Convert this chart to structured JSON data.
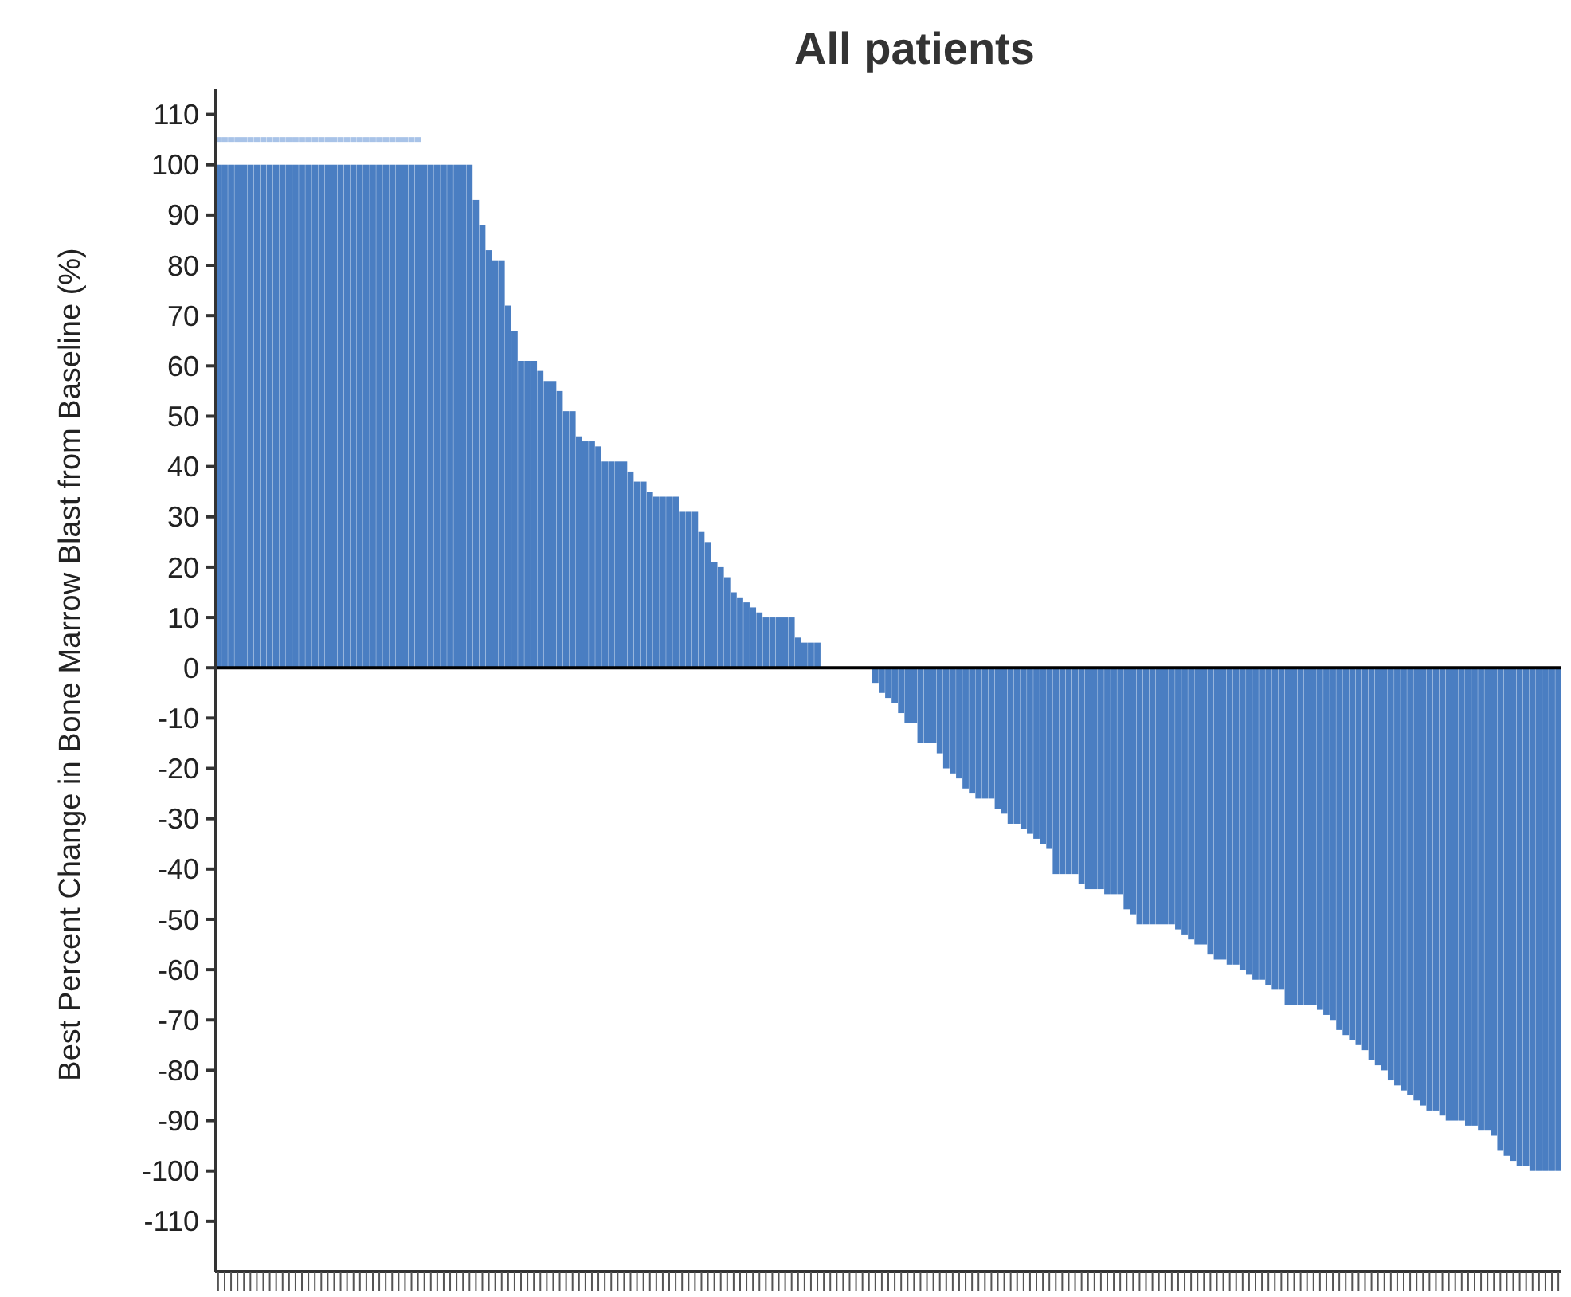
{
  "chart_data": {
    "type": "bar",
    "title": "All patients",
    "ylabel": "Best Percent Change in Bone Marrow Blast from Baseline (%)",
    "categories": [
      null,
      null,
      null,
      null,
      null,
      null,
      null,
      null,
      null,
      null,
      null,
      null,
      null,
      null,
      null,
      null,
      null,
      null,
      null,
      null,
      null,
      null,
      null,
      null,
      null,
      null,
      null,
      null,
      null,
      null,
      null,
      null,
      null,
      null,
      null,
      null,
      null,
      null,
      null,
      null,
      null,
      null,
      null,
      null,
      null,
      null,
      null,
      null,
      null,
      null,
      null,
      null,
      null,
      null,
      null,
      null,
      null,
      null,
      null,
      null,
      null,
      null,
      null,
      null,
      null,
      null,
      null,
      null,
      null,
      null,
      null,
      null,
      null,
      null,
      null,
      null,
      null,
      null,
      null,
      null,
      null,
      null,
      null,
      null,
      null,
      null,
      null,
      null,
      null,
      null,
      null,
      null,
      null,
      null,
      null,
      null,
      null,
      null,
      null,
      null,
      null,
      null,
      null,
      null,
      null,
      null,
      null,
      null,
      null,
      null,
      null,
      null,
      null,
      null,
      null,
      null,
      null,
      null,
      null,
      null,
      null,
      null,
      null,
      null,
      null,
      null,
      null,
      null,
      null,
      null,
      null,
      null,
      null,
      null,
      null,
      null,
      null,
      null,
      null,
      null,
      null,
      null,
      null,
      null,
      null,
      null,
      null,
      null,
      null,
      null,
      null,
      null,
      null,
      null,
      null,
      null,
      null,
      null,
      null,
      null,
      null,
      null,
      null,
      null,
      null,
      null,
      null,
      null,
      null,
      null,
      null,
      null,
      null,
      null,
      null,
      null,
      null,
      null,
      null,
      null,
      null,
      null,
      null,
      null,
      null,
      null,
      null,
      null,
      null,
      null,
      null,
      null,
      null,
      null,
      null,
      null,
      null,
      null,
      null,
      null,
      null,
      null,
      null,
      null,
      null,
      null,
      null,
      null,
      null
    ],
    "series": [
      {
        "color": "#4a7ec2",
        "values": [
          100,
          100,
          100,
          100,
          100,
          100,
          100,
          100,
          100,
          100,
          100,
          100,
          100,
          100,
          100,
          100,
          100,
          100,
          100,
          100,
          100,
          100,
          100,
          100,
          100,
          100,
          100,
          100,
          100,
          100,
          100,
          100,
          100,
          100,
          100,
          100,
          100,
          100,
          100,
          100,
          93,
          88,
          83,
          81,
          81,
          72,
          67,
          61,
          61,
          61,
          59,
          57,
          57,
          55,
          51,
          51,
          46,
          45,
          45,
          44,
          41,
          41,
          41,
          41,
          39,
          37,
          37,
          35,
          34,
          34,
          34,
          34,
          31,
          31,
          31,
          27,
          25,
          21,
          20,
          18,
          15,
          14,
          13,
          12,
          11,
          10,
          10,
          10,
          10,
          10,
          6,
          5,
          5,
          5,
          0,
          0,
          0,
          0,
          0,
          0,
          0,
          0,
          -3,
          -5,
          -6,
          -7,
          -9,
          -11,
          -11,
          -15,
          -15,
          -15,
          -17,
          -20,
          -21,
          -22,
          -24,
          -25,
          -26,
          -26,
          -26,
          -28,
          -29,
          -31,
          -31,
          -32,
          -33,
          -34,
          -35,
          -36,
          -41,
          -41,
          -41,
          -41,
          -43,
          -44,
          -44,
          -44,
          -45,
          -45,
          -45,
          -48,
          -49,
          -51,
          -51,
          -51,
          -51,
          -51,
          -51,
          -52,
          -53,
          -54,
          -55,
          -55,
          -57,
          -58,
          -58,
          -59,
          -59,
          -60,
          -61,
          -62,
          -62,
          -63,
          -64,
          -64,
          -67,
          -67,
          -67,
          -67,
          -67,
          -68,
          -69,
          -70,
          -72,
          -73,
          -74,
          -75,
          -76,
          -78,
          -79,
          -80,
          -82,
          -83,
          -84,
          -85,
          -86,
          -87,
          -88,
          -88,
          -89,
          -90,
          -90,
          -90,
          -91,
          -91,
          -92,
          -92,
          -93,
          -96,
          -97,
          -98,
          -99,
          -99,
          -100,
          -100,
          -100,
          -100,
          -100
        ]
      },
      {
        "type": "scatter",
        "color": "#a8c3e8",
        "marker": "square",
        "values": [
          105,
          105,
          105,
          105,
          105,
          105,
          105,
          105,
          105,
          105,
          105,
          105,
          105,
          105,
          105,
          105,
          105,
          105,
          105,
          105,
          105,
          105,
          105,
          105,
          105,
          105,
          105,
          105,
          105,
          105,
          105,
          105,
          null,
          null,
          null,
          null,
          null,
          null,
          null,
          null,
          null,
          null,
          null,
          null,
          null,
          null,
          null,
          null,
          null,
          null,
          null,
          null,
          null,
          null,
          null,
          null,
          null,
          null,
          null,
          null,
          null,
          null,
          null,
          null,
          null,
          null,
          null,
          null,
          null,
          null,
          null,
          null,
          null,
          null,
          null,
          null,
          null,
          null,
          null,
          null,
          null,
          null,
          null,
          null,
          null,
          null,
          null,
          null,
          null,
          null,
          null,
          null,
          null,
          null,
          null,
          null,
          null,
          null,
          null,
          null,
          null,
          null,
          null,
          null,
          null,
          null,
          null,
          null,
          null,
          null,
          null,
          null,
          null,
          null,
          null,
          null,
          null,
          null,
          null,
          null,
          null,
          null,
          null,
          null,
          null,
          null,
          null,
          null,
          null,
          null,
          null,
          null,
          null,
          null,
          null,
          null,
          null,
          null,
          null,
          null,
          null,
          null,
          null,
          null,
          null,
          null,
          null,
          null,
          null,
          null,
          null,
          null,
          null,
          null,
          null,
          null,
          null,
          null,
          null,
          null,
          null,
          null,
          null,
          null,
          null,
          null,
          null,
          null,
          null,
          null,
          null,
          null,
          null,
          null,
          null,
          null,
          null,
          null,
          null,
          null,
          null,
          null,
          null,
          null,
          null,
          null,
          null,
          null,
          null,
          null,
          null,
          null,
          null,
          null,
          null,
          null,
          null,
          null,
          null,
          null,
          null,
          null,
          null,
          null,
          null,
          null,
          null,
          null,
          null
        ]
      }
    ],
    "ylim": [
      -120,
      115
    ],
    "yticks": [
      -110,
      -100,
      -90,
      -80,
      -70,
      -60,
      -50,
      -40,
      -30,
      -20,
      -10,
      0,
      10,
      20,
      30,
      40,
      50,
      60,
      70,
      80,
      90,
      100,
      110
    ],
    "ref_lines": [
      {
        "axis": "y",
        "value": 0,
        "color": "#000000"
      }
    ],
    "grid": false
  }
}
